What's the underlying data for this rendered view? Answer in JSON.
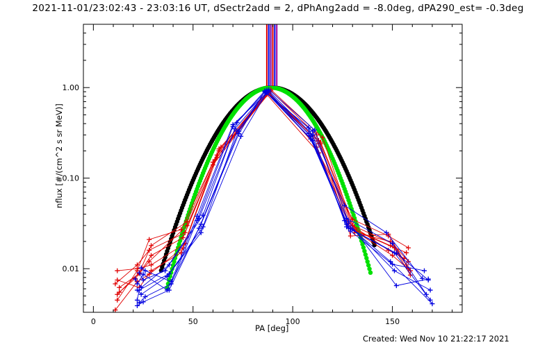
{
  "page": {
    "title": "2021-11-01/23:02:43 - 23:03:16 UT, dSectr2add = 2, dPhAng2add = -8.0deg, dPA290_est= -0.3deg",
    "footer": "Created: Wed Nov 10 21:22:17 2021"
  },
  "chart_data": {
    "type": "line",
    "title": "2021-11-01/23:02:43 - 23:03:16 UT, dSectr2add = 2, dPhAng2add = -8.0deg, dPA290_est= -0.3deg",
    "xlabel": "PA [deg]",
    "ylabel": "nflux [#/(cm^2 s sr MeV)]",
    "xlim": [
      -5,
      185
    ],
    "ylim": [
      0.0033,
      5.0
    ],
    "yscale": "log",
    "x_ticks": [
      0,
      50,
      100,
      150
    ],
    "x_tick_labels": [
      "0",
      "50",
      "100",
      "150"
    ],
    "y_ticks": [
      0.01,
      0.1,
      1.0
    ],
    "y_tick_labels": [
      "0.01",
      "0.10",
      "1.00"
    ],
    "grid": false,
    "colors": {
      "red": "#e00000",
      "blue": "#0000e0",
      "black": "#000000",
      "green": "#00e000",
      "purple": "#7000b0",
      "violet": "#a000a0"
    },
    "vertical_markers": [
      {
        "x": 87.0,
        "color": "#e00000"
      },
      {
        "x": 88.0,
        "color": "#0000e0"
      },
      {
        "x": 89.0,
        "color": "#7000b0"
      },
      {
        "x": 90.0,
        "color": "#e00000"
      },
      {
        "x": 91.0,
        "color": "#0000e0"
      },
      {
        "x": 92.0,
        "color": "#a000a0"
      }
    ],
    "series": [
      {
        "color": "red",
        "points": [
          [
            12,
            0.0045
          ],
          [
            22,
            0.0095
          ],
          [
            28,
            0.021
          ],
          [
            44,
            0.027
          ],
          [
            60,
            0.15
          ],
          [
            87,
            0.84
          ],
          [
            113,
            0.19
          ],
          [
            130,
            0.035
          ],
          [
            148,
            0.023
          ],
          [
            158,
            0.017
          ]
        ]
      },
      {
        "color": "red",
        "points": [
          [
            13,
            0.0062
          ],
          [
            23,
            0.0088
          ],
          [
            29,
            0.014
          ],
          [
            45,
            0.022
          ],
          [
            63,
            0.2
          ],
          [
            87,
            0.88
          ],
          [
            113,
            0.24
          ],
          [
            131,
            0.025
          ],
          [
            149,
            0.02
          ],
          [
            159,
            0.0085
          ]
        ]
      },
      {
        "color": "red",
        "points": [
          [
            11,
            0.0068
          ],
          [
            22,
            0.011
          ],
          [
            28,
            0.016
          ],
          [
            46,
            0.025
          ],
          [
            62,
            0.18
          ],
          [
            88,
            0.9
          ],
          [
            112,
            0.22
          ],
          [
            129,
            0.028
          ],
          [
            150,
            0.014
          ],
          [
            159,
            0.0095
          ]
        ]
      },
      {
        "color": "red",
        "points": [
          [
            12,
            0.0075
          ],
          [
            23,
            0.0062
          ],
          [
            29,
            0.0095
          ],
          [
            44,
            0.015
          ],
          [
            61,
            0.16
          ],
          [
            88,
            0.86
          ],
          [
            114,
            0.25
          ],
          [
            132,
            0.026
          ],
          [
            151,
            0.017
          ],
          [
            157,
            0.011
          ]
        ]
      },
      {
        "color": "red",
        "points": [
          [
            13,
            0.0055
          ],
          [
            21,
            0.0078
          ],
          [
            28,
            0.012
          ],
          [
            47,
            0.03
          ],
          [
            64,
            0.22
          ],
          [
            89,
            0.92
          ],
          [
            112,
            0.3
          ],
          [
            128,
            0.032
          ],
          [
            148,
            0.016
          ],
          [
            156,
            0.013
          ]
        ]
      },
      {
        "color": "red",
        "points": [
          [
            12,
            0.0095
          ],
          [
            22,
            0.01
          ],
          [
            29,
            0.011
          ],
          [
            46,
            0.019
          ],
          [
            60,
            0.14
          ],
          [
            89,
            0.95
          ],
          [
            115,
            0.28
          ],
          [
            130,
            0.03
          ],
          [
            150,
            0.019
          ],
          [
            158,
            0.012
          ]
        ]
      },
      {
        "color": "red",
        "points": [
          [
            11,
            0.0035
          ],
          [
            22,
            0.0072
          ],
          [
            28,
            0.0087
          ],
          [
            45,
            0.017
          ],
          [
            62,
            0.17
          ],
          [
            87,
            0.9
          ],
          [
            114,
            0.24
          ],
          [
            131,
            0.027
          ],
          [
            149,
            0.018
          ],
          [
            157,
            0.015
          ]
        ]
      },
      {
        "color": "red",
        "points": [
          [
            12,
            0.0052
          ],
          [
            23,
            0.009
          ],
          [
            29,
            0.018
          ],
          [
            47,
            0.033
          ],
          [
            63,
            0.21
          ],
          [
            88,
            0.87
          ],
          [
            113,
            0.26
          ],
          [
            129,
            0.023
          ],
          [
            148,
            0.024
          ],
          [
            158,
            0.01
          ]
        ]
      },
      {
        "color": "blue",
        "points": [
          [
            22,
            0.0039
          ],
          [
            25,
            0.0043
          ],
          [
            38,
            0.0058
          ],
          [
            53,
            0.028
          ],
          [
            73,
            0.33
          ],
          [
            86,
            0.9
          ],
          [
            110,
            0.33
          ],
          [
            126,
            0.05
          ],
          [
            147,
            0.025
          ],
          [
            165,
            0.0078
          ]
        ]
      },
      {
        "color": "blue",
        "points": [
          [
            23,
            0.0042
          ],
          [
            26,
            0.0049
          ],
          [
            39,
            0.0068
          ],
          [
            52,
            0.034
          ],
          [
            70,
            0.37
          ],
          [
            86,
            0.92
          ],
          [
            108,
            0.31
          ],
          [
            127,
            0.036
          ],
          [
            150,
            0.019
          ],
          [
            167,
            0.0052
          ]
        ]
      },
      {
        "color": "blue",
        "points": [
          [
            22,
            0.0058
          ],
          [
            24,
            0.0052
          ],
          [
            37,
            0.0082
          ],
          [
            54,
            0.025
          ],
          [
            74,
            0.29
          ],
          [
            87,
            0.88
          ],
          [
            110,
            0.26
          ],
          [
            128,
            0.028
          ],
          [
            151,
            0.015
          ],
          [
            169,
            0.0045
          ]
        ]
      },
      {
        "color": "blue",
        "points": [
          [
            21,
            0.0077
          ],
          [
            24,
            0.0062
          ],
          [
            38,
            0.011
          ],
          [
            55,
            0.039
          ],
          [
            72,
            0.41
          ],
          [
            87,
            0.94
          ],
          [
            109,
            0.29
          ],
          [
            127,
            0.031
          ],
          [
            149,
            0.012
          ],
          [
            170,
            0.0041
          ]
        ]
      },
      {
        "color": "blue",
        "points": [
          [
            23,
            0.009
          ],
          [
            25,
            0.0075
          ],
          [
            36,
            0.0095
          ],
          [
            53,
            0.036
          ],
          [
            71,
            0.35
          ],
          [
            88,
            0.95
          ],
          [
            111,
            0.34
          ],
          [
            128,
            0.033
          ],
          [
            152,
            0.0065
          ],
          [
            168,
            0.0077
          ]
        ]
      },
      {
        "color": "blue",
        "points": [
          [
            22,
            0.0068
          ],
          [
            25,
            0.0087
          ],
          [
            37,
            0.0058
          ],
          [
            54,
            0.031
          ],
          [
            73,
            0.31
          ],
          [
            86,
            0.91
          ],
          [
            108,
            0.36
          ],
          [
            126,
            0.034
          ],
          [
            151,
            0.0095
          ],
          [
            169,
            0.0058
          ]
        ]
      },
      {
        "color": "blue",
        "points": [
          [
            24,
            0.0102
          ],
          [
            26,
            0.0095
          ],
          [
            39,
            0.0072
          ],
          [
            52,
            0.038
          ],
          [
            70,
            0.39
          ],
          [
            87,
            0.87
          ],
          [
            109,
            0.27
          ],
          [
            129,
            0.026
          ],
          [
            150,
            0.0112
          ],
          [
            166,
            0.0095
          ]
        ]
      },
      {
        "color": "blue",
        "points": [
          [
            22,
            0.0045
          ],
          [
            23,
            0.0058
          ],
          [
            38,
            0.0088
          ],
          [
            55,
            0.029
          ],
          [
            72,
            0.33
          ],
          [
            88,
            0.92
          ],
          [
            110,
            0.3
          ],
          [
            127,
            0.029
          ],
          [
            152,
            0.0148
          ],
          [
            168,
            0.0075
          ]
        ]
      }
    ],
    "fits": [
      {
        "color": "black",
        "peak_x": 89.5,
        "peak_y": 1.0,
        "sigma": 18.2,
        "x_range": [
          34,
          141
        ]
      },
      {
        "color": "green",
        "peak_x": 89.0,
        "peak_y": 1.0,
        "sigma": 16.3,
        "x_range": [
          37,
          139
        ]
      }
    ]
  }
}
